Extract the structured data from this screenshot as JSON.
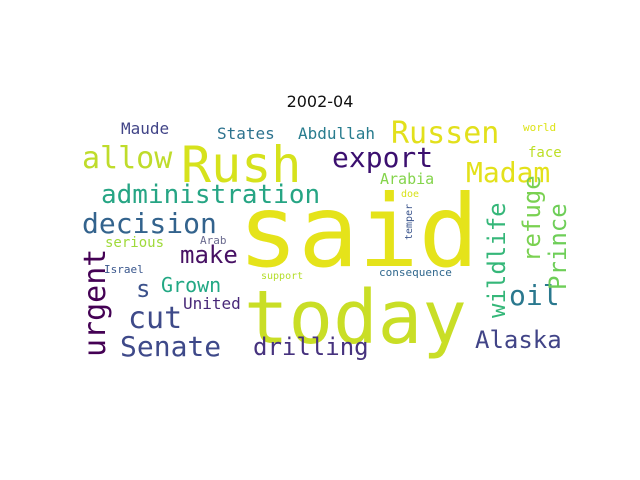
{
  "title": "2002-04",
  "words": [
    {
      "text": "said",
      "color": "#e5e31a"
    },
    {
      "text": "today",
      "color": "#c9de26"
    },
    {
      "text": "Rush",
      "color": "#d6e21c"
    },
    {
      "text": "Russen",
      "color": "#e2e01c"
    },
    {
      "text": "allow",
      "color": "#bfdc2b"
    },
    {
      "text": "export",
      "color": "#3b0f6f"
    },
    {
      "text": "Madam",
      "color": "#e3e11b"
    },
    {
      "text": "administration",
      "color": "#26a584"
    },
    {
      "text": "decision",
      "color": "#33638d"
    },
    {
      "text": "make",
      "color": "#471164"
    },
    {
      "text": "urgent",
      "color": "#440154"
    },
    {
      "text": "cut",
      "color": "#3e4a89"
    },
    {
      "text": "s",
      "color": "#3b518b"
    },
    {
      "text": "Senate",
      "color": "#3e4989"
    },
    {
      "text": "drilling",
      "color": "#46327e"
    },
    {
      "text": "Alaska",
      "color": "#414487"
    },
    {
      "text": "oil",
      "color": "#2a788e"
    },
    {
      "text": "wildlife",
      "color": "#35b779"
    },
    {
      "text": "refuge",
      "color": "#7ad151"
    },
    {
      "text": "Prince",
      "color": "#6ece58"
    },
    {
      "text": "Grown",
      "color": "#22a884"
    },
    {
      "text": "United",
      "color": "#482878"
    },
    {
      "text": "serious",
      "color": "#9fda3a"
    },
    {
      "text": "Arab",
      "color": "#6b6b8f"
    },
    {
      "text": "Israel",
      "color": "#39568c"
    },
    {
      "text": "Maude",
      "color": "#414487"
    },
    {
      "text": "States",
      "color": "#2c728e"
    },
    {
      "text": "Abdullah",
      "color": "#287c8e"
    },
    {
      "text": "Arabia",
      "color": "#84d44b"
    },
    {
      "text": "face",
      "color": "#bddf26"
    },
    {
      "text": "world",
      "color": "#dde318"
    },
    {
      "text": "doe",
      "color": "#d8e219"
    },
    {
      "text": "temper",
      "color": "#3a548c"
    },
    {
      "text": "support",
      "color": "#b5de2b"
    },
    {
      "text": "consequence",
      "color": "#31688e"
    }
  ]
}
